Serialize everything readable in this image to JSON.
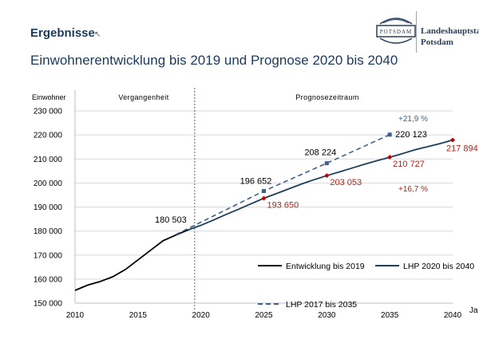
{
  "slide": {
    "heading": "Ergebnisse",
    "subtitle": "Einwohnerentwicklung bis 2019 und Prognose 2020 bis 2040"
  },
  "logo": {
    "badge_text": "POTSDAM",
    "line1": "Landeshauptsta",
    "line2": "Potsdam"
  },
  "chart_data": {
    "type": "line",
    "ylabel": "Einwohner",
    "xlabel": "Ja",
    "ylim": [
      150000,
      230000
    ],
    "xlim": [
      2010,
      2040
    ],
    "yticks": [
      150000,
      160000,
      170000,
      180000,
      190000,
      200000,
      210000,
      220000,
      230000
    ],
    "ytick_labels": [
      "150 000",
      "160 000",
      "170 000",
      "180 000",
      "190 000",
      "200 000",
      "210 000",
      "220 000",
      "230 000"
    ],
    "xticks": [
      2010,
      2015,
      2020,
      2025,
      2030,
      2035,
      2040
    ],
    "xtick_labels": [
      "2010",
      "2015",
      "2020",
      "2025",
      "2030",
      "2035",
      "2040"
    ],
    "regions": [
      {
        "label": "Vergangenheit"
      },
      {
        "label": "Prognosezeitraum"
      }
    ],
    "divider_x": 2019.5,
    "series": [
      {
        "name": "Entwicklung bis 2019",
        "color": "#000000",
        "style": "solid",
        "x": [
          2010,
          2011,
          2012,
          2013,
          2014,
          2015,
          2016,
          2017,
          2018,
          2019
        ],
        "y": [
          155300,
          157500,
          159000,
          161000,
          164000,
          168000,
          172000,
          176000,
          178300,
          180503
        ]
      },
      {
        "name": "LHP 2020 bis 2040",
        "color": "#1b3f5c",
        "style": "solid",
        "x": [
          2019,
          2020,
          2021,
          2022,
          2023,
          2024,
          2025,
          2026,
          2027,
          2028,
          2029,
          2030,
          2031,
          2032,
          2033,
          2034,
          2035,
          2036,
          2037,
          2038,
          2039,
          2040
        ],
        "y": [
          180503,
          182400,
          184600,
          186900,
          189100,
          191400,
          193650,
          195600,
          197600,
          199600,
          201400,
          203053,
          204600,
          206200,
          207800,
          209300,
          210727,
          212200,
          213800,
          215100,
          216400,
          217894
        ]
      },
      {
        "name": "LHP 2017 bis 2035",
        "color": "#3e5f87",
        "style": "dashed",
        "x": [
          2018,
          2025,
          2030,
          2035
        ],
        "y": [
          178500,
          196652,
          208224,
          220123
        ]
      }
    ],
    "data_labels": [
      {
        "text": "180 503",
        "x": 2019,
        "y": 180503,
        "color": "#000000",
        "series": "Entwicklung bis 2019"
      },
      {
        "text": "196 652",
        "x": 2025,
        "y": 196652,
        "color": "#000000",
        "series": "LHP 2017 bis 2035"
      },
      {
        "text": "208 224",
        "x": 2030,
        "y": 208224,
        "color": "#000000",
        "series": "LHP 2017 bis 2035"
      },
      {
        "text": "220 123",
        "x": 2035,
        "y": 220123,
        "color": "#000000",
        "series": "LHP 2017 bis 2035"
      },
      {
        "text": "193 650",
        "x": 2025,
        "y": 193650,
        "color": "#b02418",
        "series": "LHP 2020 bis 2040"
      },
      {
        "text": "203 053",
        "x": 2030,
        "y": 203053,
        "color": "#b02418",
        "series": "LHP 2020 bis 2040"
      },
      {
        "text": "210 727",
        "x": 2035,
        "y": 210727,
        "color": "#b02418",
        "series": "LHP 2020 bis 2040"
      },
      {
        "text": "217 894",
        "x": 2040,
        "y": 217894,
        "color": "#b02418",
        "series": "LHP 2020 bis 2040"
      }
    ],
    "annotations": [
      {
        "text": "+21,9 %",
        "color": "#3e5f87"
      },
      {
        "text": "+16,7 %",
        "color": "#b02418"
      }
    ],
    "legend_placement": "bottom-right",
    "grid": "horizontal"
  }
}
